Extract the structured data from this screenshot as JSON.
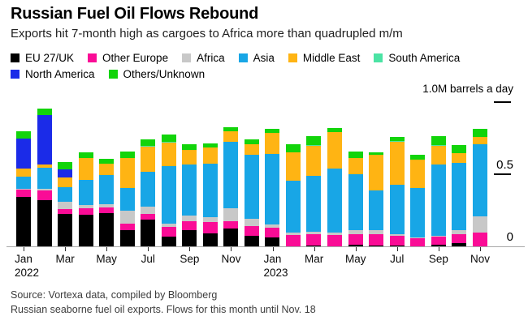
{
  "header": {
    "title": "Russian Fuel Oil Flows Rebound",
    "subtitle": "Exports hit 7-month high as cargoes to Africa more than quadrupled m/m"
  },
  "unit_label": "1.0M barrels a day",
  "chart_data": {
    "type": "bar",
    "stacked": true,
    "grid": false,
    "legend_position": "top",
    "legend_rows": [
      [
        0,
        1,
        2,
        3,
        4,
        5
      ],
      [
        6,
        7
      ]
    ],
    "ylim": [
      0,
      1.0
    ],
    "y_ticks": [
      {
        "value": 1.0,
        "label": "",
        "show_line": true
      },
      {
        "value": 0.5,
        "label": "0.5",
        "show_line": true
      },
      {
        "value": 0.0,
        "label": "0",
        "show_line": false
      }
    ],
    "categories": [
      "Jan 2022",
      "Feb 2022",
      "Mar 2022",
      "Apr 2022",
      "May 2022",
      "Jun 2022",
      "Jul 2022",
      "Aug 2022",
      "Sep 2022",
      "Oct 2022",
      "Nov 2022",
      "Dec 2022",
      "Jan 2023",
      "Feb 2023",
      "Mar 2023",
      "Apr 2023",
      "May 2023",
      "Jun 2023",
      "Jul 2023",
      "Aug 2023",
      "Sep 2023",
      "Oct 2023",
      "Nov 2023"
    ],
    "x_ticks": [
      {
        "index": 0,
        "label": "Jan",
        "year": "2022"
      },
      {
        "index": 2,
        "label": "Mar"
      },
      {
        "index": 4,
        "label": "May"
      },
      {
        "index": 6,
        "label": "Jul"
      },
      {
        "index": 8,
        "label": "Sep"
      },
      {
        "index": 10,
        "label": "Nov"
      },
      {
        "index": 12,
        "label": "Jan",
        "year": "2023"
      },
      {
        "index": 14,
        "label": "Mar"
      },
      {
        "index": 16,
        "label": "May"
      },
      {
        "index": 18,
        "label": "Jul"
      },
      {
        "index": 20,
        "label": "Sep"
      },
      {
        "index": 22,
        "label": "Nov"
      }
    ],
    "series": [
      {
        "name": "EU 27/UK",
        "color": "#000000",
        "values": [
          0.34,
          0.32,
          0.225,
          0.22,
          0.23,
          0.115,
          0.185,
          0.07,
          0.115,
          0.09,
          0.125,
          0.075,
          0.06,
          0,
          0.005,
          0,
          0.01,
          0.005,
          0.005,
          0,
          0.01,
          0.025,
          0
        ]
      },
      {
        "name": "Other Europe",
        "color": "#fa0c96",
        "values": [
          0.05,
          0.065,
          0.033,
          0.045,
          0.04,
          0.045,
          0.04,
          0.065,
          0.06,
          0.08,
          0.05,
          0.07,
          0.065,
          0.08,
          0.08,
          0.08,
          0.075,
          0.08,
          0.065,
          0.055,
          0.055,
          0.06,
          0.095
        ]
      },
      {
        "name": "Africa",
        "color": "#c8c8c8",
        "values": [
          0.005,
          0.01,
          0.05,
          0.02,
          0.025,
          0.09,
          0.05,
          0.02,
          0.04,
          0.035,
          0.09,
          0.05,
          0.025,
          0.016,
          0.016,
          0.016,
          0.027,
          0.027,
          0.01,
          0.005,
          0.005,
          0.028,
          0.115
        ]
      },
      {
        "name": "Asia",
        "color": "#18a6e6",
        "values": [
          0.085,
          0.145,
          0.1,
          0.175,
          0.205,
          0.16,
          0.24,
          0.4,
          0.355,
          0.37,
          0.46,
          0.445,
          0.49,
          0.36,
          0.385,
          0.445,
          0.39,
          0.275,
          0.345,
          0.345,
          0.495,
          0.465,
          0.5
        ]
      },
      {
        "name": "Middle East",
        "color": "#ffb413",
        "values": [
          0.055,
          0.02,
          0.065,
          0.15,
          0.08,
          0.21,
          0.175,
          0.165,
          0.1,
          0.11,
          0.075,
          0.075,
          0.145,
          0.195,
          0.21,
          0.25,
          0.115,
          0.245,
          0.295,
          0.195,
          0.13,
          0.065,
          0.05
        ]
      },
      {
        "name": "South America",
        "color": "#4be3a4",
        "values": [
          0,
          0,
          0,
          0,
          0,
          0,
          0.005,
          0.005,
          0,
          0,
          0,
          0,
          0,
          0,
          0.005,
          0,
          0,
          0,
          0.005,
          0,
          0.005,
          0,
          0
        ]
      },
      {
        "name": "North America",
        "color": "#1b2be8",
        "values": [
          0.21,
          0.34,
          0.055,
          0,
          0,
          0,
          0,
          0,
          0,
          0,
          0,
          0,
          0,
          0,
          0,
          0,
          0,
          0,
          0,
          0,
          0,
          0,
          0
        ]
      },
      {
        "name": "Others/Unknown",
        "color": "#12d40a",
        "values": [
          0.05,
          0.045,
          0.05,
          0.04,
          0.035,
          0.045,
          0.045,
          0.05,
          0.04,
          0.03,
          0.03,
          0.033,
          0.027,
          0.055,
          0.06,
          0.027,
          0.044,
          0.016,
          0.027,
          0.033,
          0.06,
          0.054,
          0.054
        ]
      }
    ],
    "title": "Russian Fuel Oil Flows Rebound",
    "xlabel": "",
    "ylabel": "1.0M barrels a day"
  },
  "footer": {
    "source": "Source: Vortexa data, compiled by Bloomberg",
    "note": "Russian seaborne fuel oil exports. Flows for this month until Nov. 18"
  }
}
